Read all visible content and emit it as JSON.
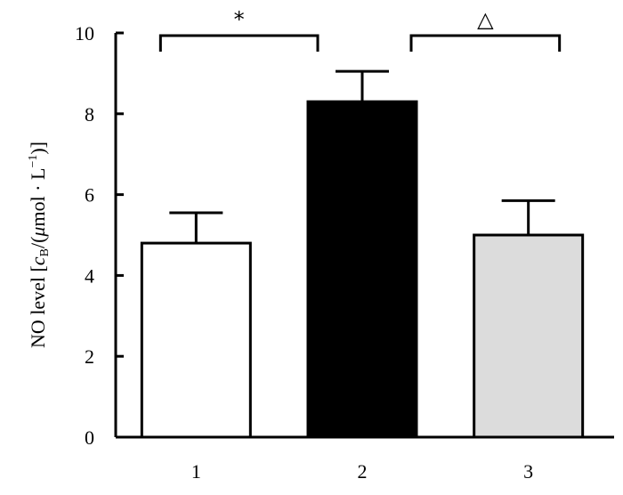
{
  "chart_data": {
    "type": "bar",
    "categories": [
      "1",
      "2",
      "3"
    ],
    "values": [
      4.8,
      8.3,
      5.0
    ],
    "errors": [
      0.75,
      0.75,
      0.85
    ],
    "bar_colors": [
      "#ffffff",
      "#000000",
      "#dcdcdc"
    ],
    "ylim": [
      0,
      10
    ],
    "yticks": [
      0,
      2,
      4,
      6,
      8,
      10
    ],
    "ylabel": "NO level [cB/(μmol · L⁻¹)]",
    "ylabel_parts": {
      "prefix": "NO level [",
      "var": "c",
      "sub": "B",
      "mid": "/(",
      "mu": "μ",
      "unit": "mol · L",
      "sup": "−1",
      "suffix": ")]"
    },
    "significance": [
      {
        "from": 0,
        "to": 1,
        "label": "*"
      },
      {
        "from": 1,
        "to": 2,
        "label": "△"
      }
    ]
  }
}
